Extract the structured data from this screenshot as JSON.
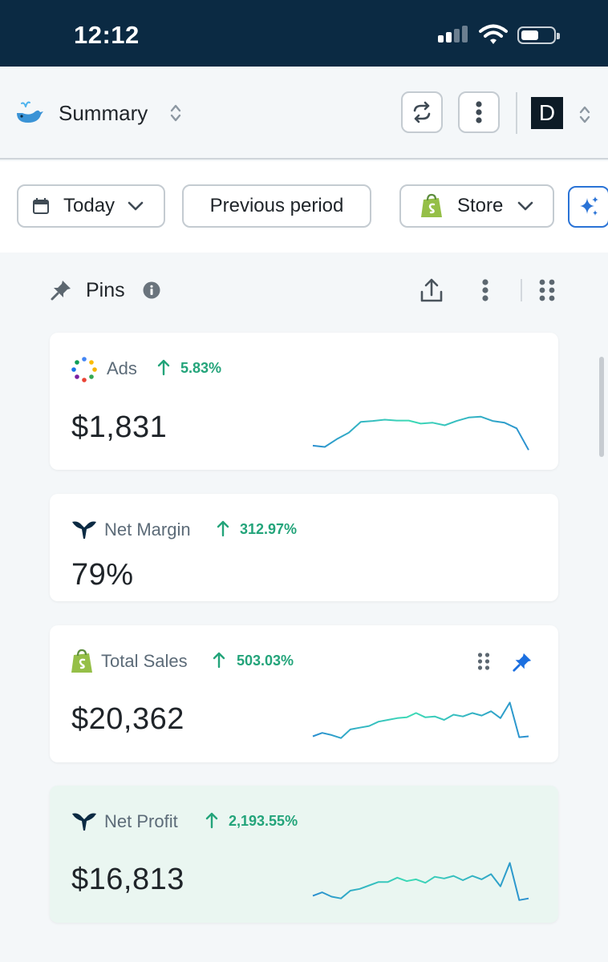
{
  "status_bar": {
    "time": "12:12"
  },
  "header": {
    "title": "Summary",
    "avatar_letter": "D"
  },
  "filters": {
    "date_label": "Today",
    "compare_label": "Previous period",
    "store_label": "Store"
  },
  "pins": {
    "title": "Pins",
    "cards": [
      {
        "label": "Ads",
        "delta": "5.83%",
        "value": "$1,831",
        "spark": [
          0.15,
          0.12,
          0.3,
          0.45,
          0.7,
          0.72,
          0.75,
          0.73,
          0.73,
          0.66,
          0.68,
          0.62,
          0.72,
          0.8,
          0.82,
          0.72,
          0.68,
          0.55,
          0.05
        ]
      },
      {
        "label": "Net Margin",
        "delta": "312.97%",
        "value": "79%"
      },
      {
        "label": "Total Sales",
        "delta": "503.03%",
        "value": "$20,362",
        "spark": [
          0.12,
          0.2,
          0.15,
          0.08,
          0.28,
          0.32,
          0.36,
          0.46,
          0.5,
          0.54,
          0.56,
          0.66,
          0.56,
          0.58,
          0.5,
          0.62,
          0.58,
          0.66,
          0.6,
          0.7,
          0.54,
          0.9,
          0.1,
          0.12
        ]
      },
      {
        "label": "Net Profit",
        "delta": "2,193.55%",
        "value": "$16,813",
        "spark": [
          0.14,
          0.22,
          0.12,
          0.08,
          0.26,
          0.3,
          0.38,
          0.46,
          0.46,
          0.56,
          0.48,
          0.52,
          0.44,
          0.58,
          0.54,
          0.6,
          0.5,
          0.6,
          0.52,
          0.64,
          0.36,
          0.9,
          0.04,
          0.08
        ]
      }
    ]
  },
  "colors": {
    "accent_green": "#23a47a",
    "spark_start": "#2a8fd0",
    "spark_end": "#3ddbb5",
    "brand_blue": "#2a73d6"
  }
}
